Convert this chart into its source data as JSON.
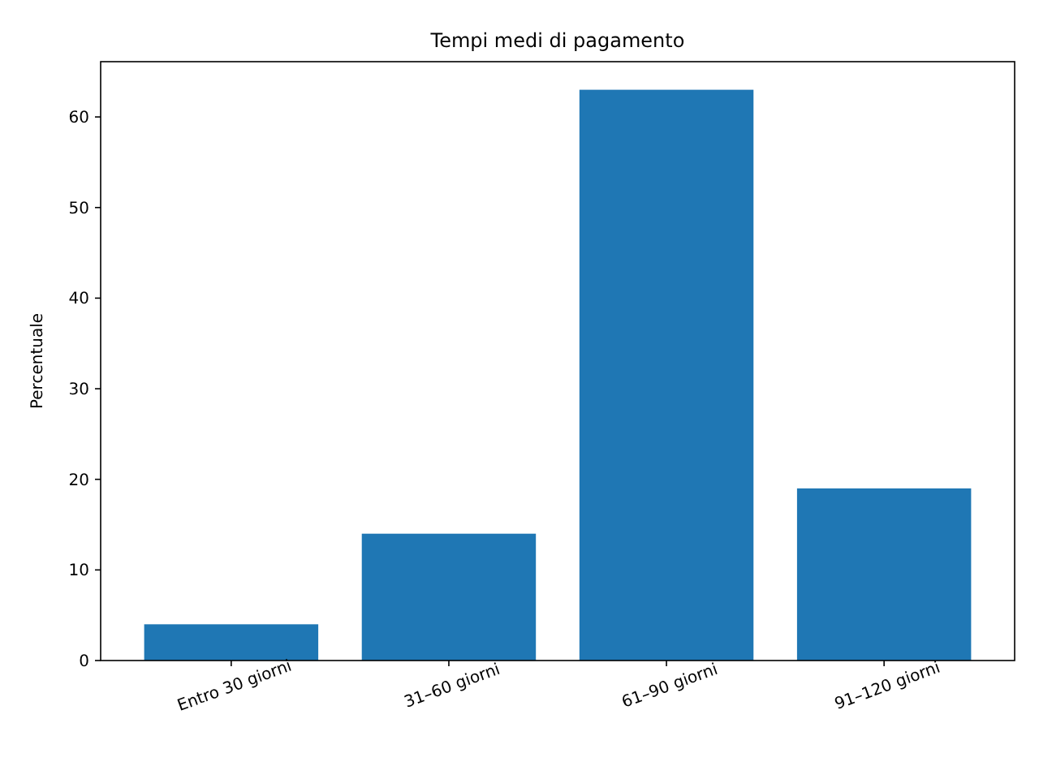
{
  "chart_data": {
    "type": "bar",
    "title": "Tempi medi di pagamento",
    "ylabel": "Percentuale",
    "categories": [
      "Entro 30 giorni",
      "31–60 giorni",
      "61–90 giorni",
      "91–120 giorni"
    ],
    "values": [
      4,
      14,
      63,
      19
    ],
    "color": "#1f77b4",
    "ylim": [
      0,
      66.1
    ],
    "yticks": [
      0,
      10,
      20,
      30,
      40,
      50,
      60
    ],
    "grid": false
  }
}
